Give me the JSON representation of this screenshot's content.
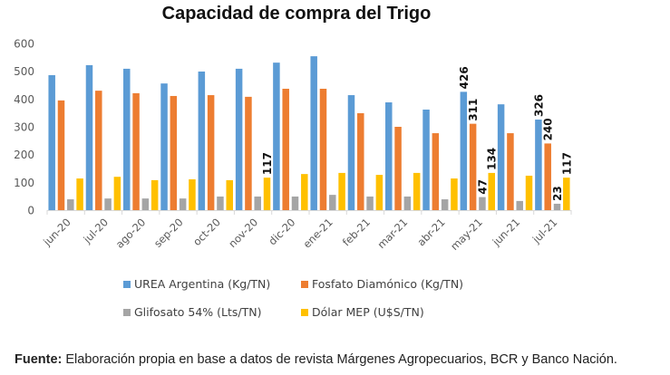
{
  "chart_data": {
    "type": "bar",
    "title": "Capacidad de compra del Trigo",
    "xlabel": "",
    "ylabel": "",
    "ylim": [
      0,
      600
    ],
    "yticks": [
      0,
      100,
      200,
      300,
      400,
      500,
      600
    ],
    "grid": false,
    "legend_position": "bottom",
    "categories": [
      "jun-20",
      "jul-20",
      "ago-20",
      "sep-20",
      "oct-20",
      "nov-20",
      "dic-20",
      "ene-21",
      "feb-21",
      "mar-21",
      "abr-21",
      "may-21",
      "jun-21",
      "jul-21"
    ],
    "series": [
      {
        "name": "UREA Argentina (Kg/TN)",
        "color": "#5B9BD5",
        "values": [
          486,
          522,
          509,
          456,
          499,
          509,
          531,
          554,
          414,
          388,
          362,
          426,
          381,
          326
        ]
      },
      {
        "name": "Fosfato Diamónico (Kg/TN)",
        "color": "#ED7D31",
        "values": [
          395,
          430,
          421,
          411,
          414,
          408,
          437,
          437,
          349,
          300,
          277,
          311,
          277,
          240
        ]
      },
      {
        "name": "Glifosato 54% (Lts/TN)",
        "color": "#A5A5A5",
        "values": [
          39,
          42,
          42,
          42,
          49,
          49,
          49,
          55,
          49,
          49,
          39,
          47,
          33,
          23
        ]
      },
      {
        "name": "Dólar MEP (U$S/TN)",
        "color": "#FFC000",
        "values": [
          114,
          120,
          108,
          111,
          108,
          117,
          130,
          134,
          127,
          134,
          114,
          134,
          124,
          117
        ]
      }
    ],
    "data_labels": [
      {
        "category": "nov-20",
        "series": "Dólar MEP (U$S/TN)",
        "text": "117"
      },
      {
        "category": "may-21",
        "series": "UREA Argentina (Kg/TN)",
        "text": "426"
      },
      {
        "category": "may-21",
        "series": "Fosfato Diamónico (Kg/TN)",
        "text": "311"
      },
      {
        "category": "may-21",
        "series": "Glifosato 54% (Lts/TN)",
        "text": "47"
      },
      {
        "category": "may-21",
        "series": "Dólar MEP (U$S/TN)",
        "text": "134"
      },
      {
        "category": "jul-21",
        "series": "UREA Argentina (Kg/TN)",
        "text": "326"
      },
      {
        "category": "jul-21",
        "series": "Fosfato Diamónico (Kg/TN)",
        "text": "240"
      },
      {
        "category": "jul-21",
        "series": "Glifosato 54% (Lts/TN)",
        "text": "23"
      },
      {
        "category": "jul-21",
        "series": "Dólar MEP (U$S/TN)",
        "text": "117"
      }
    ]
  },
  "source": {
    "label": "Fuente:",
    "text": " Elaboración propia en base a datos de revista Márgenes Agropecuarios, BCR y Banco Nación."
  }
}
